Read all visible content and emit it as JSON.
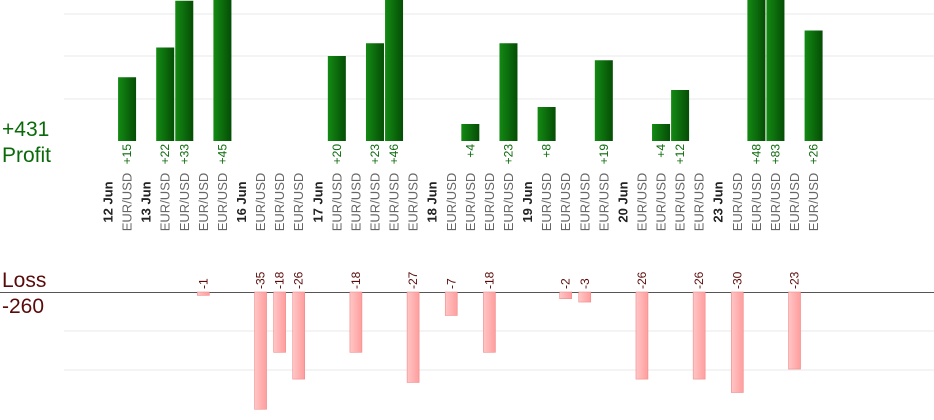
{
  "labels": {
    "profit_total": "+431",
    "profit_label": "Profit",
    "loss_label": "Loss",
    "loss_total": "-260"
  },
  "colors": {
    "profit_bar": "#0b6b0b",
    "profit_text": "#0a6a0a",
    "loss_bar": "#ffb3b3",
    "loss_text": "#5a0a0a",
    "grid": "#e8e8e8",
    "baseline": "#555555"
  },
  "chart_data": {
    "type": "bar",
    "pair": "EUR/USD",
    "date_groups": [
      {
        "date": "12 Jun",
        "slots": [
          {
            "profit": 15
          }
        ]
      },
      {
        "date": "13 Jun",
        "slots": [
          {
            "profit": 22
          },
          {
            "profit": 33
          },
          {
            "loss": -1
          },
          {
            "profit": 45
          }
        ]
      },
      {
        "date": "16 Jun",
        "slots": [
          {
            "loss": -35
          },
          {
            "loss": -18
          },
          {
            "loss": -26
          }
        ]
      },
      {
        "date": "17 Jun",
        "slots": [
          {
            "profit": 20
          },
          {
            "loss": -18
          },
          {
            "profit": 23
          },
          {
            "profit": 46
          },
          {
            "loss": -27
          }
        ]
      },
      {
        "date": "18 Jun",
        "slots": [
          {
            "loss": -7
          },
          {
            "profit": 4
          },
          {
            "loss": -18
          },
          {
            "profit": 23
          }
        ]
      },
      {
        "date": "19 Jun",
        "slots": [
          {
            "profit": 8
          },
          {
            "loss": -2
          },
          {
            "loss": -3
          },
          {
            "profit": 19
          }
        ]
      },
      {
        "date": "20 Jun",
        "slots": [
          {
            "loss": -26
          },
          {
            "profit": 4
          },
          {
            "profit": 12
          },
          {
            "loss": -26
          }
        ]
      },
      {
        "date": "23 Jun",
        "slots": [
          {
            "loss": -30
          },
          {
            "profit": 48
          },
          {
            "profit": 83
          },
          {
            "loss": -23
          },
          {
            "profit": 26
          }
        ]
      }
    ]
  }
}
